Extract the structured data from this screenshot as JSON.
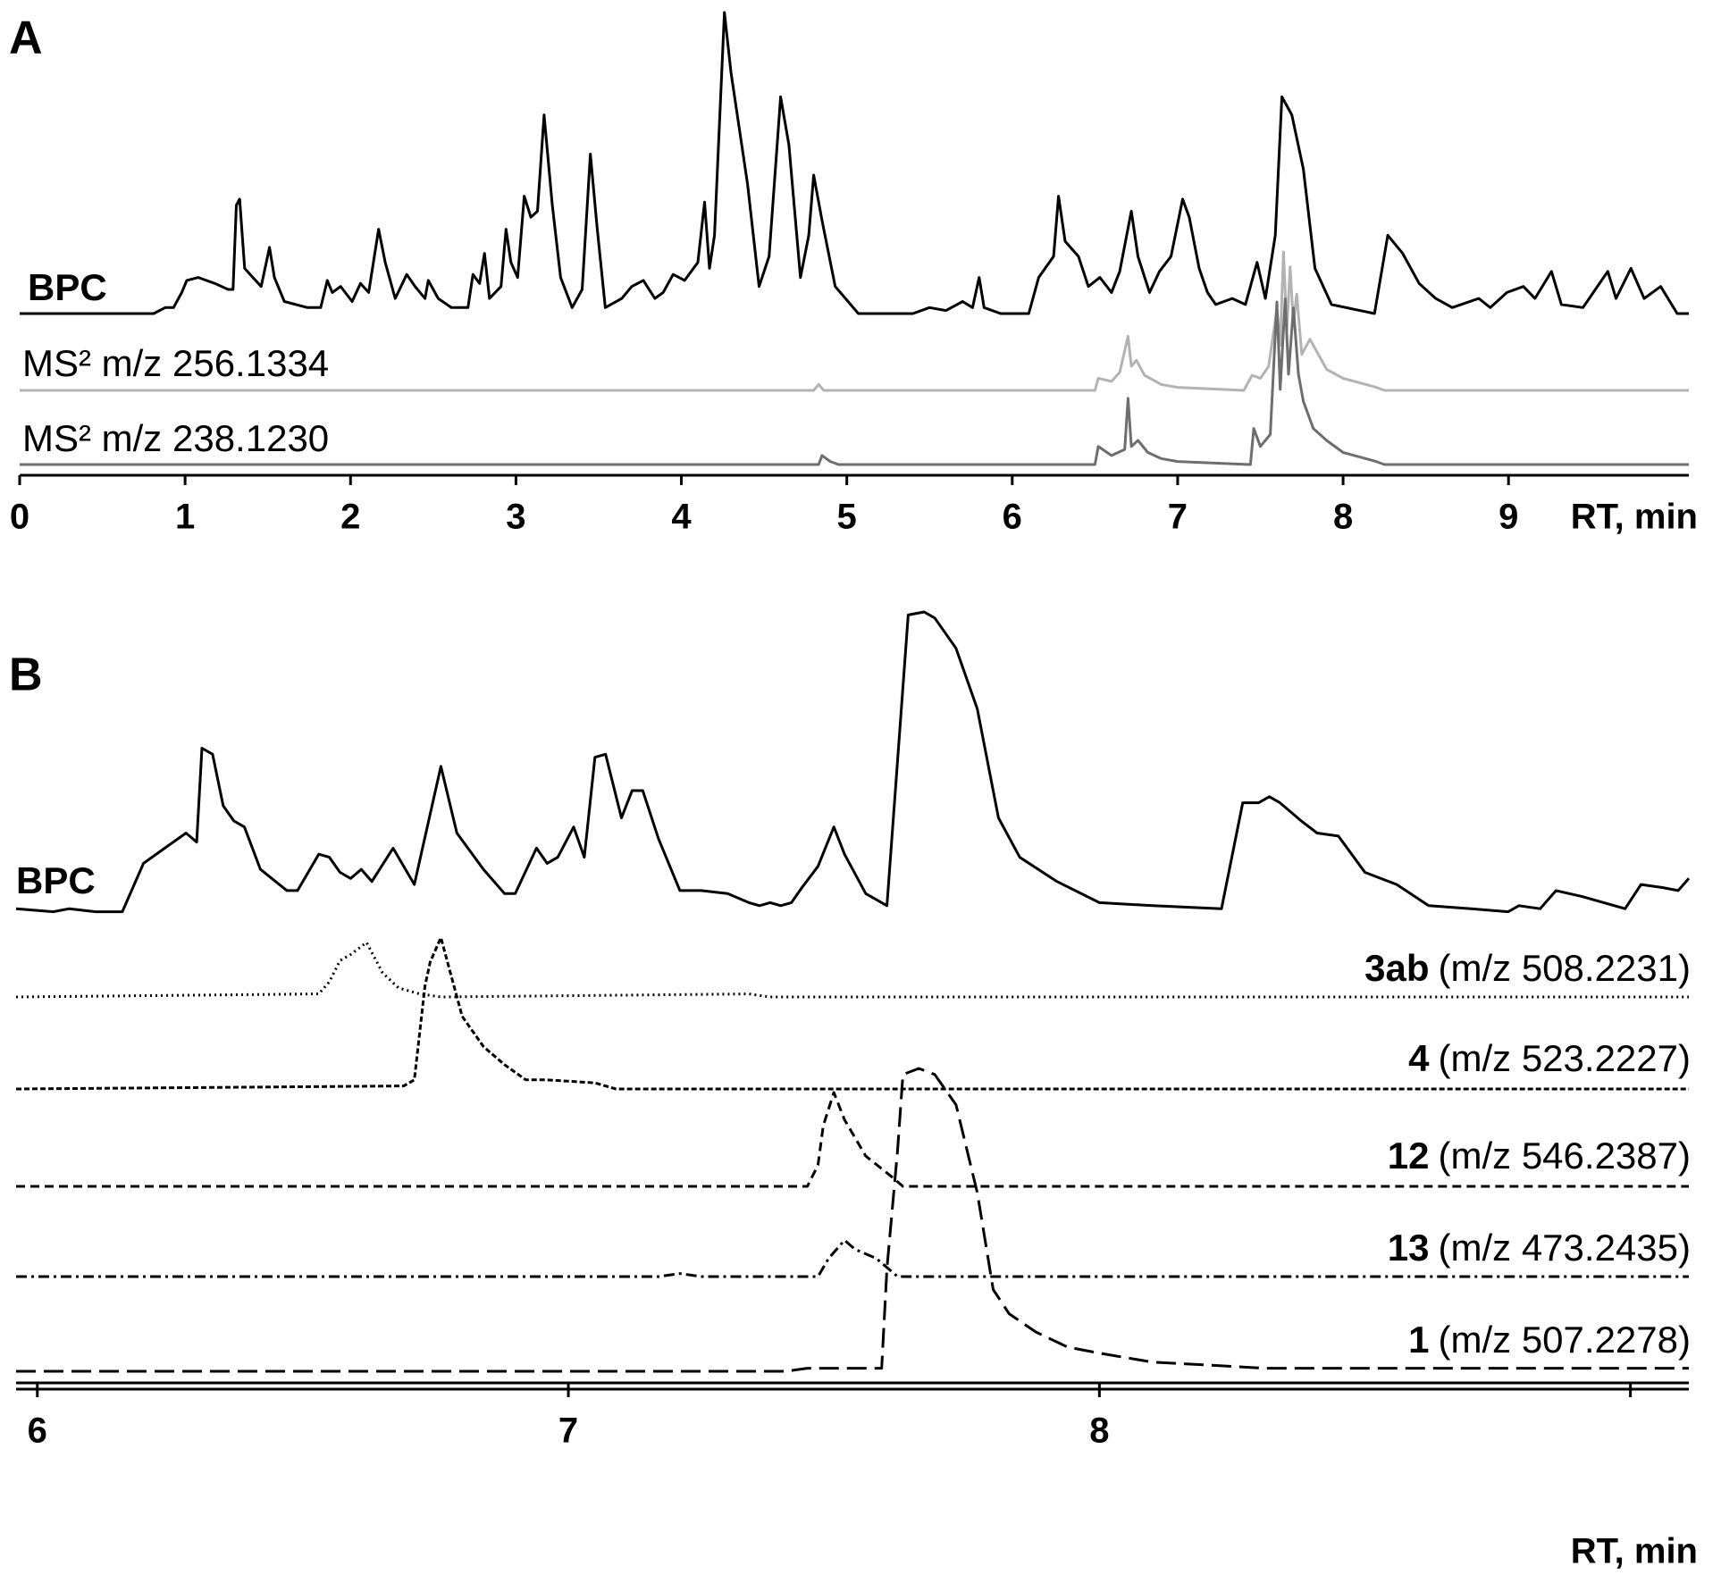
{
  "chart_data": [
    {
      "type": "line",
      "panel": "A",
      "x_label": "RT, min",
      "xlim": [
        0,
        10.09
      ],
      "xticks": [
        0,
        1,
        2,
        3,
        4,
        5,
        6,
        7,
        8,
        9
      ],
      "ylim": [
        0,
        100
      ],
      "series": [
        {
          "name": "BPC",
          "color": "#000000",
          "x": [
            0.0,
            0.81,
            0.88,
            0.93,
            0.98,
            1.01,
            1.08,
            1.18,
            1.26,
            1.29,
            1.31,
            1.33,
            1.36,
            1.41,
            1.46,
            1.51,
            1.54,
            1.6,
            1.74,
            1.82,
            1.86,
            1.89,
            1.94,
            2.01,
            2.06,
            2.11,
            2.17,
            2.21,
            2.27,
            2.34,
            2.39,
            2.45,
            2.47,
            2.53,
            2.61,
            2.71,
            2.74,
            2.78,
            2.81,
            2.84,
            2.91,
            2.94,
            2.97,
            3.01,
            3.05,
            3.09,
            3.13,
            3.17,
            3.22,
            3.27,
            3.34,
            3.4,
            3.45,
            3.49,
            3.54,
            3.64,
            3.7,
            3.77,
            3.84,
            3.89,
            3.95,
            4.02,
            4.06,
            4.1,
            4.14,
            4.17,
            4.2,
            4.26,
            4.3,
            4.4,
            4.47,
            4.53,
            4.6,
            4.65,
            4.72,
            4.77,
            4.8,
            4.85,
            4.93,
            5.07,
            5.27,
            5.4,
            5.5,
            5.6,
            5.7,
            5.76,
            5.8,
            5.83,
            5.93,
            6.03,
            6.1,
            6.16,
            6.25,
            6.28,
            6.32,
            6.4,
            6.46,
            6.53,
            6.6,
            6.65,
            6.72,
            6.76,
            6.83,
            6.89,
            6.96,
            7.03,
            7.07,
            7.13,
            7.18,
            7.23,
            7.33,
            7.41,
            7.48,
            7.53,
            7.59,
            7.63,
            7.69,
            7.76,
            7.83,
            7.93,
            8.19,
            8.27,
            8.36,
            8.46,
            8.56,
            8.66,
            8.82,
            8.89,
            8.99,
            9.09,
            9.16,
            9.26,
            9.32,
            9.45,
            9.6,
            9.65,
            9.74,
            9.82,
            9.92,
            10.02,
            10.09
          ],
          "values": [
            0,
            0,
            2,
            2,
            7,
            11,
            12,
            10,
            8,
            8,
            36,
            38,
            15,
            12,
            9,
            22,
            12,
            4,
            2,
            2,
            11,
            7,
            9,
            4,
            10,
            7,
            28,
            17,
            5,
            13,
            9,
            5,
            11,
            5,
            2,
            2,
            13,
            10,
            20,
            5,
            9,
            28,
            17,
            12,
            39,
            32,
            34,
            66,
            36,
            12,
            2,
            8,
            53,
            29,
            2,
            5,
            9,
            11,
            5,
            7,
            13,
            11,
            14,
            17,
            37,
            15,
            26,
            100,
            80,
            43,
            9,
            19,
            72,
            56,
            12,
            26,
            46,
            31,
            9,
            0,
            0,
            0,
            2,
            1,
            4,
            2,
            12,
            2,
            0,
            0,
            0,
            12,
            19,
            39,
            24,
            19,
            9,
            12,
            7,
            14,
            34,
            19,
            7,
            14,
            19,
            38,
            32,
            15,
            7,
            3,
            5,
            3,
            17,
            5,
            26,
            72,
            66,
            48,
            15,
            3,
            0,
            26,
            20,
            10,
            5,
            2,
            5,
            2,
            7,
            9,
            5,
            14,
            3,
            2,
            14,
            5,
            15,
            5,
            9,
            0,
            0
          ]
        },
        {
          "name": "MS² m/z 256.1334",
          "color": "#b3b3b3",
          "x": [
            0,
            4.8,
            4.83,
            4.86,
            6.5,
            6.52,
            6.6,
            6.65,
            6.7,
            6.72,
            6.75,
            6.8,
            6.9,
            7.0,
            7.4,
            7.45,
            7.5,
            7.55,
            7.6,
            7.62,
            7.64,
            7.66,
            7.68,
            7.7,
            7.72,
            7.75,
            7.8,
            7.9,
            8.0,
            8.2,
            8.25,
            10.09
          ],
          "values": [
            0,
            0,
            2,
            0,
            0,
            4,
            3,
            6,
            18,
            8,
            10,
            5,
            2,
            1,
            0,
            5,
            4,
            8,
            27,
            15,
            46,
            20,
            41,
            22,
            32,
            12,
            17,
            7,
            4,
            1,
            0,
            0
          ]
        },
        {
          "name": "MS² m/z 238.1230",
          "color": "#6e6e6e",
          "x": [
            0,
            4.83,
            4.85,
            4.9,
            4.95,
            6.5,
            6.52,
            6.6,
            6.68,
            6.7,
            6.72,
            6.76,
            6.82,
            6.9,
            7.0,
            7.44,
            7.46,
            7.5,
            7.56,
            7.6,
            7.62,
            7.65,
            7.67,
            7.7,
            7.73,
            7.76,
            7.82,
            7.9,
            8.0,
            8.2,
            8.25,
            10.09
          ],
          "values": [
            0,
            0,
            3,
            1,
            0,
            0,
            6,
            3,
            5,
            22,
            6,
            8,
            4,
            2,
            1,
            0,
            12,
            6,
            10,
            54,
            25,
            55,
            30,
            52,
            30,
            21,
            12,
            8,
            4,
            1,
            0,
            0
          ]
        }
      ]
    },
    {
      "type": "line",
      "panel": "B",
      "x_label": "RT, min",
      "xlim": [
        5.96,
        9.11
      ],
      "xticks": [
        6,
        7,
        8,
        {
          "value": 9,
          "label": null
        }
      ],
      "ylim": [
        0,
        100
      ],
      "series": [
        {
          "name": "BPC",
          "color": "#000000",
          "x": [
            5.96,
            6.03,
            6.06,
            6.11,
            6.16,
            6.2,
            6.24,
            6.28,
            6.3,
            6.31,
            6.33,
            6.35,
            6.37,
            6.39,
            6.42,
            6.47,
            6.49,
            6.53,
            6.55,
            6.57,
            6.59,
            6.61,
            6.63,
            6.67,
            6.71,
            6.76,
            6.79,
            6.84,
            6.88,
            6.9,
            6.94,
            6.96,
            6.98,
            7.01,
            7.03,
            7.05,
            7.07,
            7.1,
            7.12,
            7.14,
            7.17,
            7.21,
            7.25,
            7.3,
            7.34,
            7.36,
            7.38,
            7.4,
            7.42,
            7.44,
            7.47,
            7.5,
            7.52,
            7.56,
            7.6,
            7.64,
            7.67,
            7.69,
            7.73,
            7.77,
            7.81,
            7.85,
            7.92,
            8.0,
            8.1,
            8.23,
            8.27,
            8.3,
            8.32,
            8.34,
            8.38,
            8.41,
            8.45,
            8.5,
            8.56,
            8.62,
            8.7,
            8.77,
            8.79,
            8.83,
            8.86,
            8.91,
            8.99,
            9.02,
            9.06,
            9.09,
            9.11
          ],
          "values": [
            2,
            1,
            2,
            1,
            1,
            17,
            22,
            27,
            24,
            55,
            53,
            36,
            31,
            29,
            15,
            8,
            8,
            20,
            19,
            14,
            12,
            15,
            11,
            22,
            10,
            49,
            27,
            15,
            7,
            7,
            22,
            17,
            19,
            29,
            19,
            52,
            53,
            32,
            41,
            41,
            25,
            8,
            8,
            7,
            4,
            3,
            4,
            3,
            4,
            9,
            16,
            29,
            20,
            7,
            3,
            99,
            100,
            98,
            88,
            68,
            32,
            19,
            11,
            4,
            3,
            2,
            37,
            37,
            39,
            37,
            31,
            27,
            26,
            14,
            10,
            3,
            2,
            1,
            3,
            2,
            8,
            6,
            2,
            10,
            9,
            8,
            12
          ]
        },
        {
          "name": "3ab",
          "ion": "(m/z 508.2231)",
          "color": "#000000",
          "dash": "2 4",
          "x": [
            5.96,
            6.53,
            6.55,
            6.57,
            6.59,
            6.62,
            6.65,
            6.68,
            6.72,
            6.76,
            7.34,
            7.38,
            9.11
          ],
          "values": [
            0,
            1,
            5,
            12,
            14,
            18,
            8,
            3,
            1,
            0,
            1,
            0,
            0
          ]
        },
        {
          "name": "4",
          "ion": "(m/z 523.2227)",
          "color": "#000000",
          "dash": "6 3",
          "x": [
            5.96,
            6.69,
            6.71,
            6.73,
            6.74,
            6.76,
            6.78,
            6.8,
            6.84,
            6.88,
            6.92,
            6.96,
            7.05,
            7.09,
            9.11
          ],
          "values": [
            0,
            1,
            3,
            34,
            42,
            50,
            37,
            24,
            14,
            8,
            3,
            3,
            2,
            0,
            0
          ]
        },
        {
          "name": "12",
          "ion": "(m/z 546.2387)",
          "color": "#000000",
          "dash": "10 6",
          "x": [
            5.96,
            7.45,
            7.47,
            7.48,
            7.5,
            7.52,
            7.56,
            7.61,
            7.63,
            9.11
          ],
          "values": [
            0,
            0,
            7,
            20,
            31,
            22,
            10,
            3,
            0,
            0
          ]
        },
        {
          "name": "13",
          "ion": "(m/z 473.2435)",
          "color": "#000000",
          "dash": "12 5 3 5",
          "x": [
            5.96,
            7.17,
            7.21,
            7.25,
            7.47,
            7.49,
            7.52,
            7.54,
            7.58,
            7.6,
            7.62,
            9.11
          ],
          "values": [
            0,
            0,
            1,
            0,
            0,
            6,
            12,
            9,
            6,
            3,
            0,
            0
          ]
        },
        {
          "name": "1",
          "ion": "(m/z 507.2278)",
          "color": "#000000",
          "dash": "22 9",
          "x": [
            5.96,
            7.41,
            7.45,
            7.59,
            7.6,
            7.62,
            7.63,
            7.66,
            7.69,
            7.73,
            7.77,
            7.8,
            7.83,
            7.88,
            7.94,
            8.0,
            8.1,
            8.21,
            8.31,
            9.11
          ],
          "values": [
            0,
            0,
            1,
            1,
            34,
            73,
            98,
            100,
            98,
            88,
            59,
            27,
            19,
            13,
            8,
            6,
            3,
            2,
            1,
            1
          ]
        }
      ]
    }
  ]
}
